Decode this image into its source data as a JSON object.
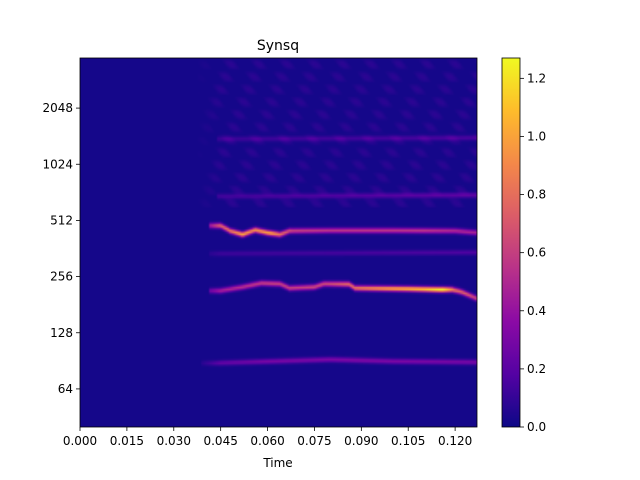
{
  "chart_data": {
    "type": "heatmap",
    "title": "Synsq",
    "xlabel": "Time",
    "ylabel": "",
    "xlim": [
      0,
      0.127
    ],
    "y_scale": "log2",
    "ylim": [
      40,
      3800
    ],
    "x_ticks": [
      0,
      0.015,
      0.03,
      0.045,
      0.06,
      0.075,
      0.09,
      0.105,
      0.12
    ],
    "x_tick_labels": [
      "0.000",
      "0.015",
      "0.030",
      "0.045",
      "0.060",
      "0.075",
      "0.090",
      "0.105",
      "0.120"
    ],
    "y_ticks": [
      64,
      128,
      256,
      512,
      1024,
      2048
    ],
    "y_tick_labels": [
      "64",
      "128",
      "256",
      "512",
      "1024",
      "2048"
    ],
    "colormap": "plasma",
    "value_range": [
      0,
      1.27
    ],
    "colorbar_ticks": [
      0,
      0.2,
      0.4,
      0.6,
      0.8,
      1.0,
      1.2
    ],
    "colorbar_tick_labels": [
      "0.0",
      "0.2",
      "0.4",
      "0.6",
      "0.8",
      "1.0",
      "1.2"
    ],
    "background_value": 0.02,
    "onset_time": 0.043,
    "ridges": [
      {
        "freq_points": [
          [
            0.045,
            480
          ],
          [
            0.048,
            450
          ],
          [
            0.052,
            430
          ],
          [
            0.056,
            455
          ],
          [
            0.06,
            440
          ],
          [
            0.064,
            430
          ],
          [
            0.067,
            450
          ],
          [
            0.08,
            452
          ],
          [
            0.1,
            452
          ],
          [
            0.12,
            450
          ],
          [
            0.127,
            440
          ]
        ],
        "peaks": [
          [
            0.046,
            0.75
          ],
          [
            0.05,
            0.9
          ],
          [
            0.052,
            1.0
          ],
          [
            0.055,
            0.9
          ],
          [
            0.058,
            0.95
          ],
          [
            0.061,
            1.0
          ],
          [
            0.064,
            0.8
          ],
          [
            0.068,
            0.6
          ],
          [
            0.08,
            0.55
          ],
          [
            0.11,
            0.55
          ],
          [
            0.127,
            0.45
          ]
        ]
      },
      {
        "freq_points": [
          [
            0.045,
            215
          ],
          [
            0.052,
            225
          ],
          [
            0.058,
            236
          ],
          [
            0.064,
            234
          ],
          [
            0.067,
            222
          ],
          [
            0.075,
            225
          ],
          [
            0.078,
            234
          ],
          [
            0.086,
            233
          ],
          [
            0.088,
            222
          ],
          [
            0.105,
            220
          ],
          [
            0.115,
            218
          ],
          [
            0.119,
            218
          ],
          [
            0.122,
            212
          ],
          [
            0.127,
            195
          ]
        ],
        "peaks": [
          [
            0.045,
            0.45
          ],
          [
            0.055,
            0.55
          ],
          [
            0.062,
            0.6
          ],
          [
            0.07,
            0.6
          ],
          [
            0.08,
            0.65
          ],
          [
            0.09,
            0.85
          ],
          [
            0.1,
            1.0
          ],
          [
            0.11,
            1.1
          ],
          [
            0.116,
            1.27
          ],
          [
            0.12,
            0.8
          ],
          [
            0.127,
            0.6
          ]
        ]
      },
      {
        "freq_points": [
          [
            0.043,
            88
          ],
          [
            0.08,
            92
          ],
          [
            0.1,
            90
          ],
          [
            0.127,
            89
          ]
        ],
        "peaks": [
          [
            0.043,
            0.2
          ],
          [
            0.06,
            0.28
          ],
          [
            0.09,
            0.3
          ],
          [
            0.127,
            0.28
          ]
        ]
      },
      {
        "freq_points": [
          [
            0.045,
            340
          ],
          [
            0.127,
            345
          ]
        ],
        "peaks": [
          [
            0.045,
            0.1
          ],
          [
            0.127,
            0.15
          ]
        ]
      },
      {
        "freq_points": [
          [
            0.048,
            690
          ],
          [
            0.127,
            700
          ]
        ],
        "peaks": [
          [
            0.048,
            0.12
          ],
          [
            0.127,
            0.2
          ]
        ]
      },
      {
        "freq_points": [
          [
            0.048,
            1400
          ],
          [
            0.127,
            1420
          ]
        ],
        "peaks": [
          [
            0.048,
            0.1
          ],
          [
            0.127,
            0.14
          ]
        ]
      }
    ]
  }
}
